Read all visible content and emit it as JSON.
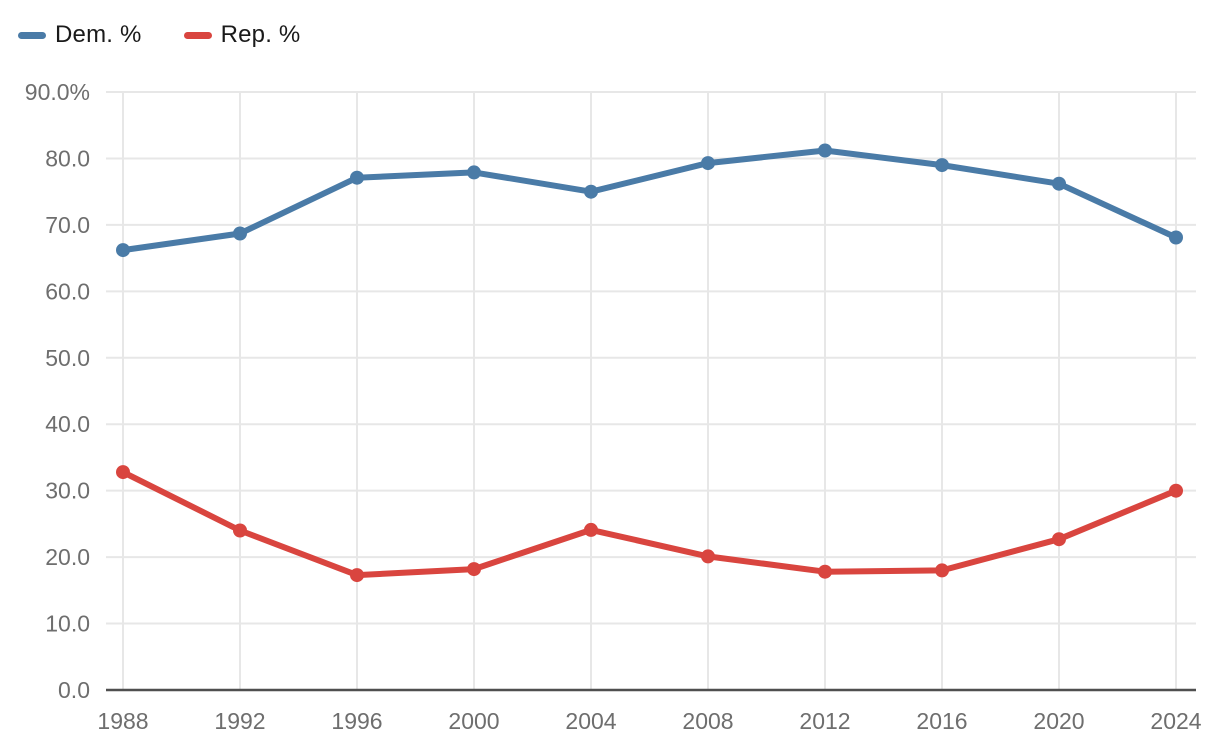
{
  "chart_data": {
    "type": "line",
    "x": [
      "1988",
      "1992",
      "1996",
      "2000",
      "2004",
      "2008",
      "2012",
      "2016",
      "2020",
      "2024"
    ],
    "series": [
      {
        "name": "Dem. %",
        "color": "#4a7ba7",
        "values": [
          66.2,
          68.7,
          77.1,
          77.9,
          75.0,
          79.3,
          81.2,
          79.0,
          76.2,
          68.1
        ]
      },
      {
        "name": "Rep. %",
        "color": "#d9453f",
        "values": [
          32.8,
          24.0,
          17.3,
          18.2,
          24.1,
          20.1,
          17.8,
          18.0,
          22.7,
          30.0
        ]
      }
    ],
    "title": "",
    "xlabel": "",
    "ylabel": "",
    "ylim": [
      0,
      90
    ],
    "y_tick_step": 10,
    "y_tick_labels": [
      "0.0",
      "10.0",
      "20.0",
      "30.0",
      "40.0",
      "50.0",
      "60.0",
      "70.0",
      "80.0",
      "90.0%"
    ],
    "grid": true,
    "legend_position": "top-left"
  },
  "colors": {
    "gridline": "#e7e7e7",
    "axis_line": "#4f4f4f",
    "tick_label": "#6e6e6e",
    "legend_text": "#1a1a1a",
    "background": "#ffffff"
  }
}
